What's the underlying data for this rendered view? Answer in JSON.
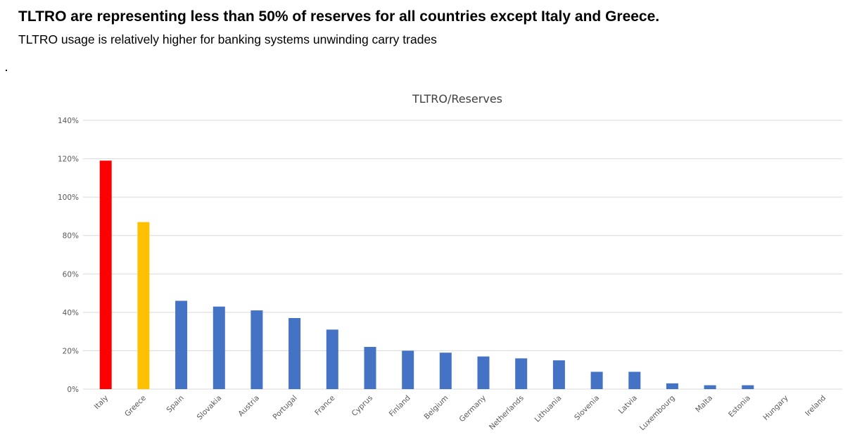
{
  "headline": "TLTRO are representing less than 50% of reserves for all countries except Italy and Greece.",
  "subheadline": "TLTRO usage is relatively higher for banking systems unwinding carry trades",
  "chart_data": {
    "type": "bar",
    "title": "TLTRO/Reserves",
    "xlabel": "",
    "ylabel": "",
    "ylim": [
      0,
      140
    ],
    "yticks": [
      "0%",
      "20%",
      "40%",
      "60%",
      "80%",
      "100%",
      "120%",
      "140%"
    ],
    "grid": true,
    "legend": "none",
    "categories": [
      "Italy",
      "Greece",
      "Spain",
      "Slovakia",
      "Austria",
      "Portugal",
      "France",
      "Cyprus",
      "Finland",
      "Belgium",
      "Germany",
      "Netherlands",
      "Lithuania",
      "Slovenia",
      "Latvia",
      "Luxembourg",
      "Malta",
      "Estonia",
      "Hungary",
      "Ireland"
    ],
    "values": [
      119,
      87,
      46,
      43,
      41,
      37,
      31,
      22,
      20,
      19,
      17,
      16,
      15,
      9,
      9,
      3,
      2,
      2,
      0,
      0
    ],
    "colors": [
      "#FF0000",
      "#FFC000",
      "#4472C4",
      "#4472C4",
      "#4472C4",
      "#4472C4",
      "#4472C4",
      "#4472C4",
      "#4472C4",
      "#4472C4",
      "#4472C4",
      "#4472C4",
      "#4472C4",
      "#4472C4",
      "#4472C4",
      "#4472C4",
      "#4472C4",
      "#4472C4",
      "#4472C4",
      "#4472C4"
    ],
    "gridline_color": "#D9D9D9"
  }
}
